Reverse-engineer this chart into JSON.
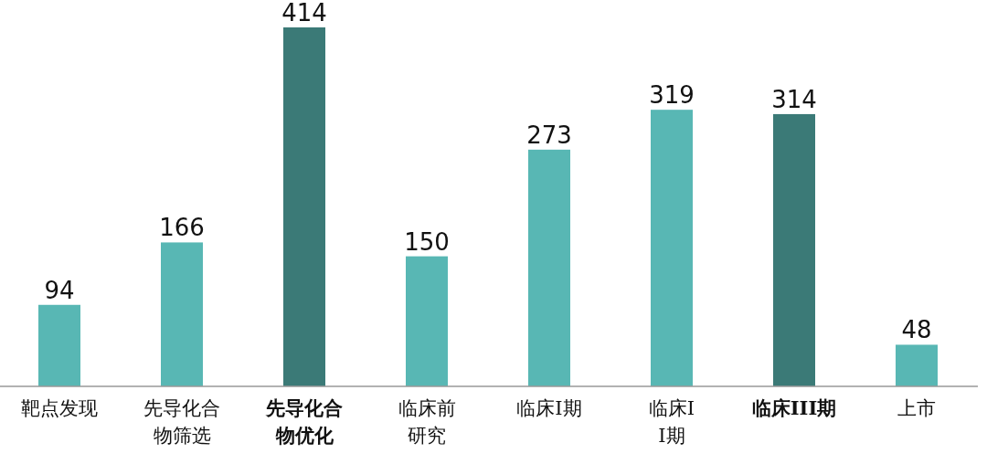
{
  "chart_data": {
    "type": "bar",
    "data_labels": true,
    "categories": [
      "靶点发现",
      "先导化合物筛选",
      "先导化合物优化",
      "临床前研究",
      "临床I期",
      "临床II期",
      "临床III期",
      "上市"
    ],
    "values": [
      94,
      166,
      414,
      150,
      273,
      319,
      314,
      48
    ],
    "colors": [
      "#58b7b4",
      "#58b7b4",
      "#3b7a77",
      "#58b7b4",
      "#58b7b4",
      "#58b7b4",
      "#3b7a77",
      "#58b7b4"
    ]
  }
}
